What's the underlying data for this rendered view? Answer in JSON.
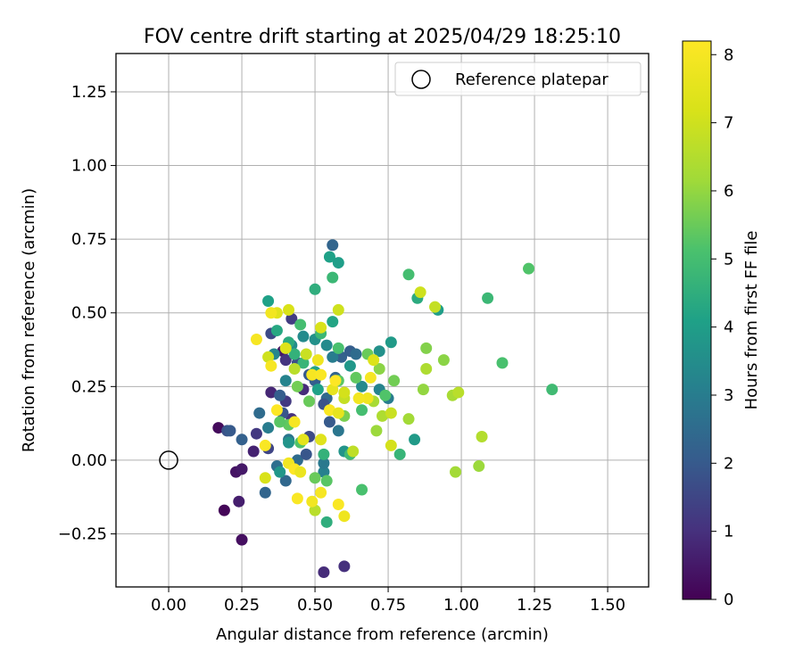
{
  "chart_data": {
    "type": "scatter",
    "title": "FOV centre drift starting at 2025/04/29 18:25:10",
    "xlabel": "Angular distance from reference (arcmin)",
    "ylabel": "Rotation from reference (arcmin)",
    "xlim": [
      -0.18,
      1.64
    ],
    "ylim": [
      -0.43,
      1.38
    ],
    "x_ticks": [
      0.0,
      0.25,
      0.5,
      0.75,
      1.0,
      1.25,
      1.5
    ],
    "x_tick_labels": [
      "0.00",
      "0.25",
      "0.50",
      "0.75",
      "1.00",
      "1.25",
      "1.50"
    ],
    "y_ticks": [
      -0.25,
      0.0,
      0.25,
      0.5,
      0.75,
      1.0,
      1.25
    ],
    "y_tick_labels": [
      "−0.25",
      "0.00",
      "0.25",
      "0.50",
      "0.75",
      "1.00",
      "1.25"
    ],
    "grid": true,
    "legend": {
      "placement": "upper right",
      "entries": [
        "Reference platepar"
      ]
    },
    "reference_point": {
      "x": 0.0,
      "y": 0.0,
      "marker": "open-circle"
    },
    "colorbar": {
      "label": "Hours from first FF file",
      "colormap": "viridis",
      "range": [
        0,
        8.2
      ],
      "ticks": [
        0,
        1,
        2,
        3,
        4,
        5,
        6,
        7,
        8
      ]
    },
    "points": [
      [
        0.17,
        0.11,
        0.2
      ],
      [
        0.19,
        -0.17,
        0.1
      ],
      [
        0.25,
        -0.27,
        0.3
      ],
      [
        0.23,
        -0.04,
        0.4
      ],
      [
        0.25,
        -0.03,
        0.5
      ],
      [
        0.24,
        -0.14,
        0.6
      ],
      [
        0.29,
        0.03,
        0.7
      ],
      [
        0.53,
        -0.38,
        0.9
      ],
      [
        0.6,
        -0.36,
        1.0
      ],
      [
        0.3,
        0.09,
        1.2
      ],
      [
        0.34,
        0.04,
        1.5
      ],
      [
        0.35,
        0.23,
        0.8
      ],
      [
        0.39,
        0.37,
        0.5
      ],
      [
        0.4,
        0.34,
        1.1
      ],
      [
        0.42,
        0.14,
        1.0
      ],
      [
        0.35,
        0.43,
        1.6
      ],
      [
        0.42,
        0.48,
        1.3
      ],
      [
        0.44,
        0.33,
        1.7
      ],
      [
        0.4,
        0.2,
        1.2
      ],
      [
        0.46,
        0.24,
        0.9
      ],
      [
        0.33,
        -0.11,
        2.3
      ],
      [
        0.2,
        0.1,
        1.8
      ],
      [
        0.21,
        0.1,
        2.0
      ],
      [
        0.25,
        0.07,
        2.2
      ],
      [
        0.37,
        -0.02,
        2.6
      ],
      [
        0.4,
        -0.07,
        2.4
      ],
      [
        0.41,
        0.07,
        2.8
      ],
      [
        0.44,
        0.0,
        2.5
      ],
      [
        0.47,
        0.02,
        1.9
      ],
      [
        0.31,
        0.16,
        2.5
      ],
      [
        0.38,
        0.22,
        2.1
      ],
      [
        0.39,
        0.16,
        1.9
      ],
      [
        0.48,
        0.29,
        2.0
      ],
      [
        0.5,
        0.27,
        2.1
      ],
      [
        0.54,
        0.21,
        2.4
      ],
      [
        0.57,
        0.28,
        2.3
      ],
      [
        0.59,
        0.35,
        2.2
      ],
      [
        0.62,
        0.37,
        2.1
      ],
      [
        0.64,
        0.36,
        2.5
      ],
      [
        0.56,
        0.73,
        2.3
      ],
      [
        0.55,
        0.13,
        2.0
      ],
      [
        0.58,
        0.1,
        2.8
      ],
      [
        0.53,
        0.19,
        1.8
      ],
      [
        0.48,
        0.08,
        1.6
      ],
      [
        0.34,
        0.11,
        3.0
      ],
      [
        0.4,
        0.27,
        3.2
      ],
      [
        0.42,
        0.39,
        3.5
      ],
      [
        0.36,
        0.36,
        3.3
      ],
      [
        0.46,
        0.42,
        3.4
      ],
      [
        0.5,
        0.41,
        3.6
      ],
      [
        0.54,
        0.39,
        3.4
      ],
      [
        0.56,
        0.35,
        3.0
      ],
      [
        0.53,
        -0.04,
        3.1
      ],
      [
        0.53,
        -0.01,
        2.9
      ],
      [
        0.6,
        0.03,
        3.7
      ],
      [
        0.62,
        0.32,
        3.8
      ],
      [
        0.66,
        0.25,
        3.4
      ],
      [
        0.72,
        0.24,
        3.2
      ],
      [
        0.75,
        0.21,
        3.0
      ],
      [
        0.72,
        0.37,
        3.6
      ],
      [
        0.76,
        0.4,
        3.9
      ],
      [
        0.84,
        0.07,
        3.9
      ],
      [
        0.38,
        -0.04,
        3.8
      ],
      [
        0.41,
        0.06,
        3.7
      ],
      [
        0.56,
        0.47,
        4.2
      ],
      [
        0.55,
        0.69,
        4.1
      ],
      [
        0.58,
        0.67,
        4.0
      ],
      [
        0.5,
        0.58,
        4.5
      ],
      [
        0.56,
        0.62,
        4.8
      ],
      [
        0.85,
        0.55,
        4.4
      ],
      [
        0.92,
        0.51,
        4.0
      ],
      [
        0.34,
        0.54,
        4.1
      ],
      [
        0.37,
        0.44,
        4.3
      ],
      [
        0.41,
        0.4,
        4.4
      ],
      [
        0.43,
        0.36,
        4.6
      ],
      [
        0.46,
        0.33,
        4.7
      ],
      [
        0.5,
        0.3,
        4.2
      ],
      [
        0.51,
        0.24,
        4.1
      ],
      [
        0.53,
        0.02,
        4.6
      ],
      [
        0.54,
        -0.21,
        4.5
      ],
      [
        0.62,
        0.02,
        4.9
      ],
      [
        0.66,
        0.17,
        5.0
      ],
      [
        0.74,
        0.22,
        5.2
      ],
      [
        0.79,
        0.02,
        4.7
      ],
      [
        0.45,
        0.46,
        5.0
      ],
      [
        0.52,
        0.43,
        4.8
      ],
      [
        0.58,
        0.38,
        5.1
      ],
      [
        0.64,
        0.28,
        5.4
      ],
      [
        0.66,
        -0.1,
        5.1
      ],
      [
        0.54,
        -0.07,
        5.3
      ],
      [
        0.5,
        -0.06,
        5.5
      ],
      [
        0.45,
        0.06,
        5.2
      ],
      [
        0.41,
        0.12,
        5.4
      ],
      [
        0.38,
        0.13,
        5.3
      ],
      [
        0.44,
        0.25,
        5.6
      ],
      [
        0.48,
        0.2,
        5.5
      ],
      [
        0.58,
        0.27,
        5.3
      ],
      [
        0.6,
        0.15,
        5.7
      ],
      [
        0.68,
        0.36,
        5.5
      ],
      [
        0.82,
        0.63,
        5.0
      ],
      [
        1.09,
        0.55,
        4.8
      ],
      [
        1.23,
        0.65,
        5.2
      ],
      [
        1.31,
        0.24,
        4.9
      ],
      [
        1.14,
        0.33,
        5.1
      ],
      [
        0.77,
        0.27,
        5.6
      ],
      [
        0.88,
        0.38,
        5.8
      ],
      [
        0.94,
        0.34,
        5.9
      ],
      [
        0.87,
        0.24,
        6.0
      ],
      [
        0.82,
        0.14,
        6.2
      ],
      [
        0.71,
        0.1,
        6.1
      ],
      [
        0.72,
        0.31,
        5.9
      ],
      [
        0.7,
        0.2,
        6.3
      ],
      [
        0.73,
        0.15,
        6.4
      ],
      [
        0.98,
        -0.04,
        6.2
      ],
      [
        1.06,
        -0.02,
        6.1
      ],
      [
        1.07,
        0.08,
        6.5
      ],
      [
        0.97,
        0.22,
        6.3
      ],
      [
        0.99,
        0.23,
        6.6
      ],
      [
        0.88,
        0.31,
        6.4
      ],
      [
        0.91,
        0.52,
        6.8
      ],
      [
        0.86,
        0.57,
        7.0
      ],
      [
        0.76,
        0.16,
        6.9
      ],
      [
        0.76,
        0.05,
        7.1
      ],
      [
        0.63,
        0.03,
        6.7
      ],
      [
        0.6,
        0.21,
        6.8
      ],
      [
        0.58,
        0.51,
        7.0
      ],
      [
        0.52,
        0.45,
        7.2
      ],
      [
        0.47,
        0.36,
        6.9
      ],
      [
        0.43,
        0.31,
        6.6
      ],
      [
        0.4,
        0.38,
        7.3
      ],
      [
        0.34,
        0.35,
        7.0
      ],
      [
        0.33,
        -0.06,
        7.2
      ],
      [
        0.5,
        -0.17,
        6.6
      ],
      [
        0.52,
        0.07,
        7.4
      ],
      [
        0.46,
        0.07,
        7.5
      ],
      [
        0.56,
        0.24,
        7.6
      ],
      [
        0.6,
        0.23,
        7.1
      ],
      [
        0.65,
        0.21,
        7.7
      ],
      [
        0.7,
        0.34,
        7.3
      ],
      [
        0.68,
        0.21,
        7.8
      ],
      [
        0.37,
        0.5,
        7.4
      ],
      [
        0.41,
        0.51,
        7.2
      ],
      [
        0.35,
        0.5,
        7.9
      ],
      [
        0.3,
        0.41,
        8.0
      ],
      [
        0.33,
        0.05,
        8.1
      ],
      [
        0.35,
        0.32,
        8.0
      ],
      [
        0.37,
        0.17,
        8.2
      ],
      [
        0.43,
        0.13,
        8.0
      ],
      [
        0.44,
        -0.13,
        8.1
      ],
      [
        0.49,
        -0.14,
        7.9
      ],
      [
        0.52,
        -0.11,
        8.0
      ],
      [
        0.58,
        -0.15,
        8.1
      ],
      [
        0.6,
        -0.19,
        7.8
      ],
      [
        0.41,
        -0.01,
        7.9
      ],
      [
        0.43,
        -0.03,
        8.2
      ],
      [
        0.45,
        -0.04,
        7.7
      ],
      [
        0.49,
        0.29,
        8.0
      ],
      [
        0.51,
        0.34,
        7.8
      ],
      [
        0.52,
        0.29,
        8.1
      ],
      [
        0.57,
        0.27,
        8.2
      ],
      [
        0.65,
        0.21,
        7.9
      ],
      [
        0.69,
        0.28,
        8.0
      ],
      [
        0.55,
        0.17,
        8.1
      ],
      [
        0.58,
        0.16,
        7.6
      ]
    ]
  }
}
